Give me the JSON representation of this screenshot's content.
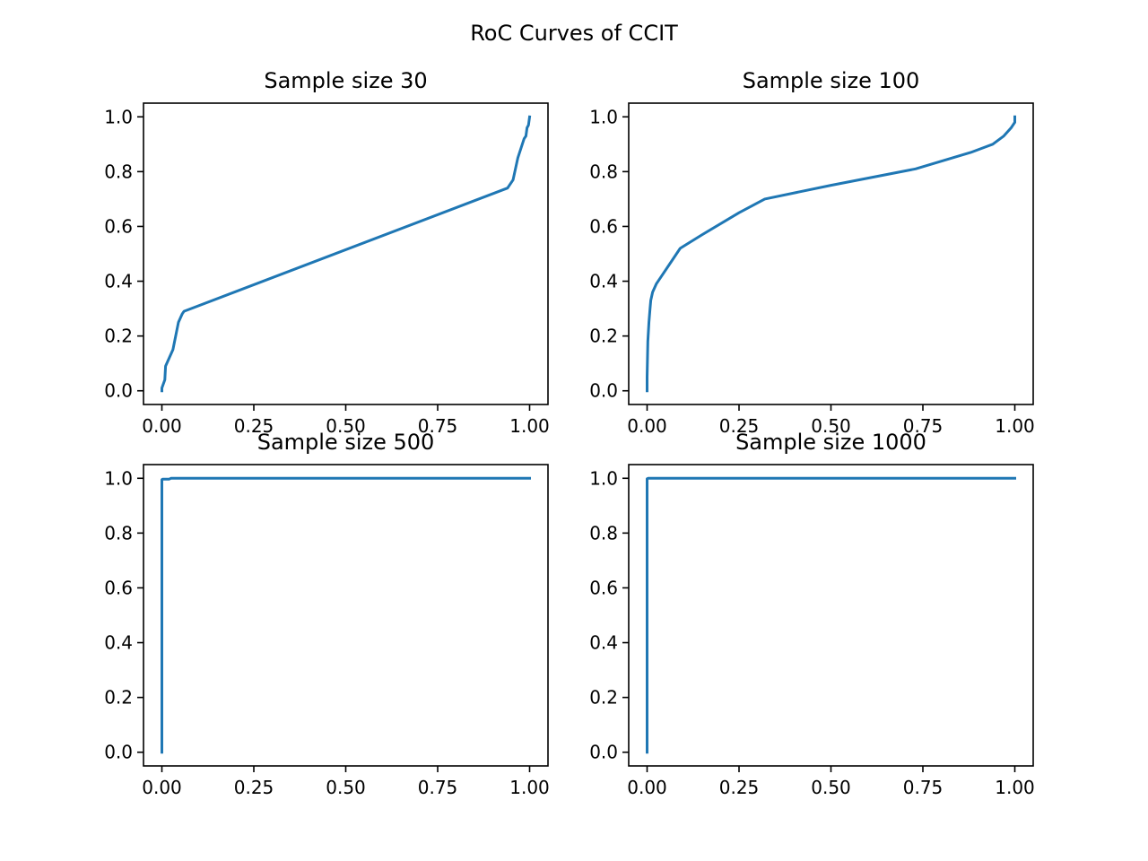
{
  "figure": {
    "suptitle": "RoC Curves of CCIT"
  },
  "style": {
    "line_color": "#1f77b4"
  },
  "chart_data": [
    {
      "type": "line",
      "title": "Sample size 30",
      "xlabel": "",
      "ylabel": "",
      "xlim": [
        -0.05,
        1.05
      ],
      "ylim": [
        -0.05,
        1.05
      ],
      "grid": false,
      "xticks": [
        0.0,
        0.25,
        0.5,
        0.75,
        1.0
      ],
      "xtick_labels": [
        "0.00",
        "0.25",
        "0.50",
        "0.75",
        "1.00"
      ],
      "yticks": [
        0.0,
        0.2,
        0.4,
        0.6,
        0.8,
        1.0
      ],
      "ytick_labels": [
        "0.0",
        "0.2",
        "0.4",
        "0.6",
        "0.8",
        "1.0"
      ],
      "series": [
        {
          "x": [
            0.0,
            0.0,
            0.008,
            0.01,
            0.03,
            0.045,
            0.055,
            0.06,
            0.94,
            0.955,
            0.968,
            0.985,
            0.99,
            0.993,
            0.997,
            1.0
          ],
          "y": [
            0.0,
            0.01,
            0.04,
            0.09,
            0.15,
            0.25,
            0.28,
            0.29,
            0.74,
            0.77,
            0.85,
            0.92,
            0.93,
            0.96,
            0.97,
            1.0
          ]
        }
      ]
    },
    {
      "type": "line",
      "title": "Sample size 100",
      "xlabel": "",
      "ylabel": "",
      "xlim": [
        -0.05,
        1.05
      ],
      "ylim": [
        -0.05,
        1.05
      ],
      "grid": false,
      "xticks": [
        0.0,
        0.25,
        0.5,
        0.75,
        1.0
      ],
      "xtick_labels": [
        "0.00",
        "0.25",
        "0.50",
        "0.75",
        "1.00"
      ],
      "yticks": [
        0.0,
        0.2,
        0.4,
        0.6,
        0.8,
        1.0
      ],
      "ytick_labels": [
        "0.0",
        "0.2",
        "0.4",
        "0.6",
        "0.8",
        "1.0"
      ],
      "series": [
        {
          "x": [
            0.0,
            0.0,
            0.002,
            0.005,
            0.008,
            0.01,
            0.015,
            0.025,
            0.04,
            0.07,
            0.09,
            0.15,
            0.25,
            0.32,
            0.5,
            0.73,
            0.88,
            0.92,
            0.94,
            0.97,
            0.99,
            0.995,
            1.0,
            1.0
          ],
          "y": [
            0.0,
            0.05,
            0.18,
            0.25,
            0.3,
            0.33,
            0.36,
            0.39,
            0.42,
            0.48,
            0.52,
            0.57,
            0.65,
            0.7,
            0.75,
            0.81,
            0.87,
            0.89,
            0.9,
            0.93,
            0.96,
            0.97,
            0.98,
            1.0
          ]
        }
      ]
    },
    {
      "type": "line",
      "title": "Sample size 500",
      "xlabel": "",
      "ylabel": "",
      "xlim": [
        -0.05,
        1.05
      ],
      "ylim": [
        -0.05,
        1.05
      ],
      "grid": false,
      "xticks": [
        0.0,
        0.25,
        0.5,
        0.75,
        1.0
      ],
      "xtick_labels": [
        "0.00",
        "0.25",
        "0.50",
        "0.75",
        "1.00"
      ],
      "yticks": [
        0.0,
        0.2,
        0.4,
        0.6,
        0.8,
        1.0
      ],
      "ytick_labels": [
        "0.0",
        "0.2",
        "0.4",
        "0.6",
        "0.8",
        "1.0"
      ],
      "series": [
        {
          "x": [
            0.0,
            0.0,
            0.002,
            0.02,
            0.025,
            1.0
          ],
          "y": [
            0.0,
            0.995,
            0.997,
            0.997,
            1.0,
            1.0
          ]
        }
      ]
    },
    {
      "type": "line",
      "title": "Sample size 1000",
      "xlabel": "",
      "ylabel": "",
      "xlim": [
        -0.05,
        1.05
      ],
      "ylim": [
        -0.05,
        1.05
      ],
      "grid": false,
      "xticks": [
        0.0,
        0.25,
        0.5,
        0.75,
        1.0
      ],
      "xtick_labels": [
        "0.00",
        "0.25",
        "0.50",
        "0.75",
        "1.00"
      ],
      "yticks": [
        0.0,
        0.2,
        0.4,
        0.6,
        0.8,
        1.0
      ],
      "ytick_labels": [
        "0.0",
        "0.2",
        "0.4",
        "0.6",
        "0.8",
        "1.0"
      ],
      "series": [
        {
          "x": [
            0.0,
            0.0,
            0.003,
            1.0
          ],
          "y": [
            0.0,
            0.998,
            1.0,
            1.0
          ]
        }
      ]
    }
  ]
}
